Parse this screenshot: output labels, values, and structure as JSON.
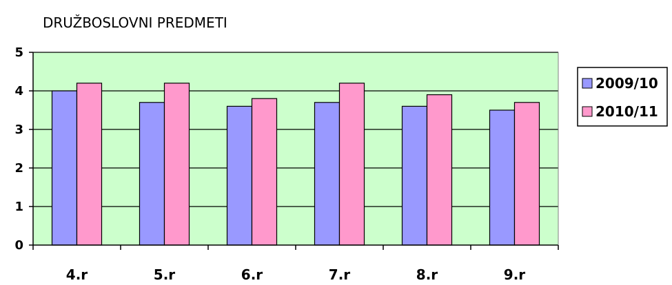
{
  "chart_data": {
    "type": "bar",
    "title": "DRUŽBOSLOVNI PREDMETI",
    "xlabel": "",
    "ylabel": "",
    "categories": [
      "4.r",
      "5.r",
      "6.r",
      "7.r",
      "8.r",
      "9.r"
    ],
    "series": [
      {
        "name": "2009/10",
        "color": "#9999ff",
        "values": [
          4.0,
          3.7,
          3.6,
          3.7,
          3.6,
          3.5
        ]
      },
      {
        "name": "2010/11",
        "color": "#ff99cc",
        "values": [
          4.2,
          4.2,
          3.8,
          4.2,
          3.9,
          3.7
        ]
      }
    ],
    "ylim": [
      0,
      5
    ],
    "yticks": [
      "0",
      "1",
      "2",
      "3",
      "4",
      "5"
    ],
    "grid": true,
    "plot_background": "#ccffcc",
    "legend_position": "right"
  }
}
